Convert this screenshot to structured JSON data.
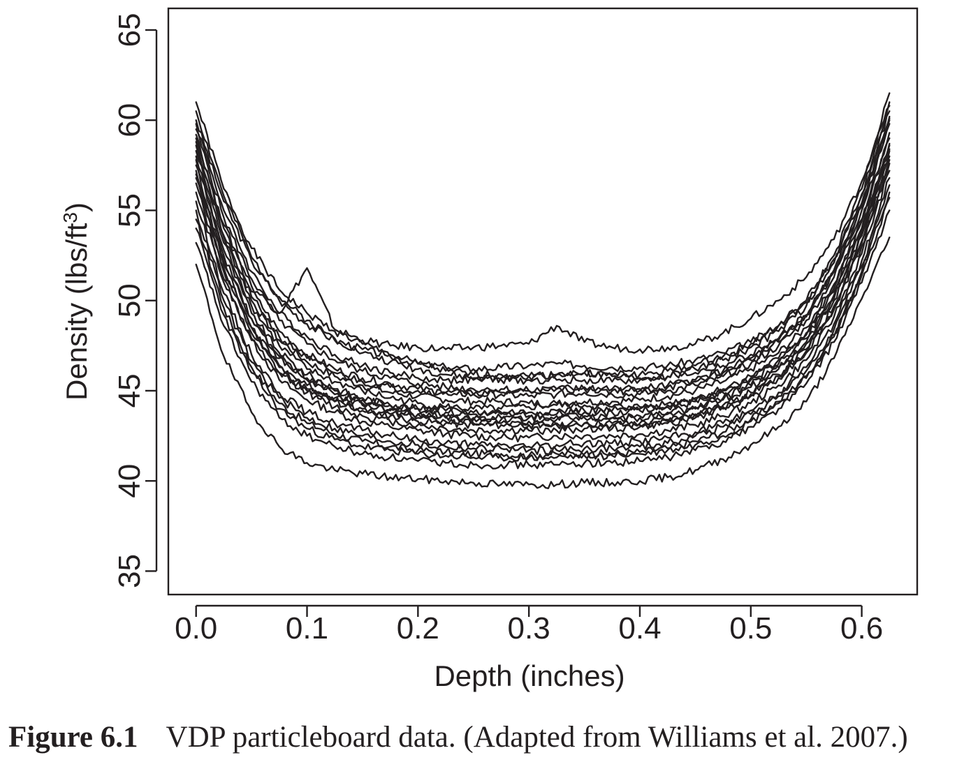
{
  "chart_data": {
    "type": "line",
    "xlabel": "Depth (inches)",
    "ylabel": "Density (lbs/ft3)",
    "ylabel_parts": {
      "main": "Density (lbs/ft",
      "sup": "3",
      "end": ")"
    },
    "xlim": [
      -0.025,
      0.65
    ],
    "ylim": [
      33.7,
      66.2
    ],
    "x_ticks": [
      "0.0",
      "0.1",
      "0.2",
      "0.3",
      "0.4",
      "0.5",
      "0.6"
    ],
    "y_ticks": [
      "35",
      "40",
      "45",
      "50",
      "55",
      "60",
      "65"
    ],
    "grid": false,
    "legend": "none",
    "line_color": "#231f20",
    "series_note": "24 profiles, each sampled at x = 0.0 to 0.625 inches",
    "x": [
      0.0,
      0.025,
      0.05,
      0.075,
      0.1,
      0.125,
      0.15,
      0.175,
      0.2,
      0.225,
      0.25,
      0.275,
      0.3,
      0.325,
      0.35,
      0.375,
      0.4,
      0.425,
      0.45,
      0.475,
      0.5,
      0.525,
      0.55,
      0.575,
      0.6,
      0.625
    ],
    "series": [
      {
        "values": [
          61.0,
          56.2,
          52.9,
          50.6,
          49.3,
          48.3,
          47.6,
          47.0,
          46.5,
          46.1,
          45.9,
          45.9,
          45.8,
          45.9,
          46.0,
          45.9,
          45.9,
          46.1,
          46.4,
          46.9,
          47.6,
          48.6,
          50.0,
          52.5,
          56.2,
          61.5
        ]
      },
      {
        "values": [
          60.5,
          55.8,
          52.4,
          50.2,
          48.9,
          47.9,
          47.1,
          46.6,
          46.2,
          45.9,
          45.7,
          45.6,
          45.6,
          45.6,
          45.6,
          45.5,
          45.6,
          45.8,
          46.2,
          46.7,
          47.4,
          48.3,
          49.7,
          52.1,
          55.8,
          61.0
        ]
      },
      {
        "values": [
          60.0,
          55.5,
          52.2,
          50.0,
          48.7,
          47.8,
          47.3,
          46.9,
          46.5,
          46.3,
          46.2,
          46.3,
          46.4,
          46.5,
          46.4,
          46.3,
          46.3,
          46.4,
          46.7,
          47.1,
          47.7,
          48.6,
          49.9,
          52.3,
          55.9,
          60.5
        ]
      },
      {
        "values": [
          59.8,
          55.0,
          51.6,
          49.3,
          48.0,
          47.0,
          46.4,
          46.0,
          45.7,
          45.6,
          45.6,
          45.7,
          45.8,
          45.9,
          46.0,
          45.8,
          45.7,
          45.8,
          46.0,
          46.4,
          47.0,
          47.9,
          49.2,
          51.6,
          55.2,
          60.0
        ]
      },
      {
        "values": [
          59.5,
          54.6,
          51.2,
          48.9,
          47.6,
          46.7,
          46.1,
          45.7,
          45.4,
          45.2,
          45.1,
          45.1,
          45.0,
          45.1,
          45.2,
          45.1,
          45.1,
          45.3,
          45.6,
          46.1,
          46.8,
          47.8,
          49.2,
          51.7,
          55.4,
          60.2
        ]
      },
      {
        "values": [
          59.2,
          54.0,
          50.5,
          48.3,
          47.0,
          46.2,
          45.7,
          45.4,
          45.1,
          44.9,
          44.8,
          44.8,
          44.7,
          44.8,
          44.9,
          44.8,
          44.8,
          45.0,
          45.3,
          45.8,
          46.5,
          47.5,
          48.9,
          51.3,
          55.0,
          59.8
        ]
      },
      {
        "values": [
          58.8,
          53.5,
          50.0,
          47.8,
          46.6,
          45.8,
          45.3,
          44.9,
          44.7,
          44.5,
          44.4,
          44.4,
          44.3,
          44.3,
          44.4,
          44.4,
          44.5,
          44.7,
          45.0,
          45.5,
          46.2,
          47.1,
          48.5,
          50.9,
          54.5,
          59.3
        ]
      },
      {
        "values": [
          58.3,
          53.2,
          49.7,
          47.5,
          46.2,
          45.5,
          45.0,
          44.6,
          44.3,
          44.1,
          44.0,
          44.0,
          44.1,
          44.2,
          44.2,
          44.1,
          44.1,
          44.3,
          44.6,
          45.1,
          45.8,
          46.8,
          48.2,
          50.7,
          54.4,
          59.0
        ]
      },
      {
        "values": [
          58.0,
          52.8,
          49.3,
          47.1,
          45.9,
          45.1,
          44.6,
          44.2,
          44.0,
          43.8,
          43.7,
          43.7,
          43.6,
          43.7,
          43.8,
          43.8,
          43.9,
          44.1,
          44.4,
          44.9,
          45.6,
          46.5,
          47.9,
          50.3,
          53.9,
          58.6
        ]
      },
      {
        "values": [
          57.8,
          52.5,
          49.0,
          46.8,
          45.6,
          44.8,
          44.3,
          44.0,
          43.7,
          43.6,
          43.5,
          43.5,
          43.5,
          43.6,
          43.6,
          43.5,
          43.5,
          43.7,
          44.0,
          44.5,
          45.2,
          46.2,
          47.6,
          50.0,
          53.6,
          58.3
        ]
      },
      {
        "values": [
          57.5,
          52.0,
          48.5,
          46.3,
          45.1,
          44.4,
          43.9,
          43.6,
          43.3,
          43.2,
          43.1,
          43.1,
          43.1,
          43.1,
          43.2,
          43.2,
          43.2,
          43.4,
          43.7,
          44.2,
          44.9,
          45.9,
          47.3,
          49.7,
          53.3,
          58.0
        ]
      },
      {
        "values": [
          57.0,
          51.6,
          48.2,
          46.0,
          44.9,
          44.1,
          43.6,
          43.3,
          43.1,
          42.9,
          42.8,
          42.8,
          42.8,
          42.8,
          42.9,
          42.9,
          43.0,
          43.2,
          43.5,
          44.0,
          44.7,
          45.7,
          47.1,
          49.5,
          53.0,
          57.6
        ]
      },
      {
        "values": [
          56.5,
          51.2,
          47.8,
          45.6,
          44.5,
          43.8,
          43.3,
          43.0,
          42.8,
          42.6,
          42.5,
          42.4,
          42.4,
          42.5,
          42.5,
          42.5,
          42.6,
          42.8,
          43.1,
          43.6,
          44.3,
          45.3,
          46.7,
          49.1,
          52.6,
          57.2
        ]
      },
      {
        "values": [
          56.0,
          51.0,
          47.9,
          46.0,
          45.0,
          44.4,
          44.0,
          43.7,
          43.5,
          43.3,
          43.2,
          43.2,
          43.1,
          43.2,
          43.2,
          43.1,
          43.1,
          43.3,
          43.6,
          44.1,
          44.8,
          45.8,
          47.2,
          49.6,
          53.2,
          57.8
        ]
      },
      {
        "values": [
          55.5,
          50.4,
          47.0,
          44.9,
          43.8,
          43.2,
          42.8,
          42.5,
          42.3,
          42.1,
          42.0,
          42.0,
          41.9,
          42.0,
          42.1,
          42.1,
          42.2,
          42.4,
          42.7,
          43.2,
          43.9,
          44.9,
          46.3,
          48.7,
          52.2,
          56.8
        ]
      },
      {
        "values": [
          55.0,
          50.0,
          46.6,
          44.6,
          43.5,
          42.9,
          42.5,
          42.2,
          42.0,
          41.9,
          41.8,
          41.8,
          41.7,
          41.7,
          41.8,
          41.8,
          41.9,
          42.1,
          42.5,
          43.0,
          43.7,
          44.7,
          46.1,
          48.4,
          51.9,
          56.4
        ]
      },
      {
        "values": [
          54.5,
          49.6,
          46.3,
          44.3,
          43.2,
          42.6,
          42.2,
          41.9,
          41.7,
          41.6,
          41.5,
          41.5,
          41.4,
          41.5,
          41.5,
          41.5,
          41.6,
          41.8,
          42.2,
          42.7,
          43.4,
          44.4,
          45.8,
          48.1,
          51.6,
          56.0
        ]
      },
      {
        "values": [
          53.2,
          48.6,
          45.5,
          43.5,
          42.5,
          41.9,
          41.5,
          41.3,
          41.1,
          41.0,
          40.9,
          40.9,
          40.9,
          40.9,
          41.0,
          41.0,
          41.1,
          41.3,
          41.7,
          42.2,
          43.0,
          44.0,
          45.4,
          47.7,
          51.0,
          55.0
        ]
      },
      {
        "values": [
          52.0,
          46.9,
          43.8,
          41.9,
          41.0,
          40.6,
          40.4,
          40.2,
          40.1,
          40.0,
          39.9,
          39.8,
          39.8,
          39.8,
          39.9,
          39.9,
          40.0,
          40.2,
          40.6,
          41.2,
          42.0,
          43.0,
          44.4,
          46.8,
          50.1,
          53.5
        ]
      },
      {
        "values": [
          59.0,
          54.2,
          50.8,
          49.3,
          51.8,
          48.4,
          47.8,
          47.5,
          47.4,
          47.3,
          47.4,
          47.5,
          47.6,
          48.6,
          47.7,
          47.4,
          47.3,
          47.4,
          47.6,
          48.2,
          49.0,
          50.0,
          51.3,
          53.4,
          56.6,
          60.8
        ]
      },
      {
        "values": [
          58.6,
          53.6,
          50.2,
          48.0,
          46.8,
          46.0,
          45.5,
          45.2,
          45.0,
          44.9,
          44.8,
          44.9,
          45.0,
          45.1,
          45.1,
          45.0,
          45.0,
          45.2,
          45.5,
          46.0,
          46.7,
          47.7,
          49.1,
          51.6,
          55.3,
          60.1
        ]
      },
      {
        "values": [
          57.2,
          52.3,
          49.0,
          46.9,
          45.7,
          45.0,
          44.5,
          44.2,
          44.0,
          43.9,
          43.8,
          43.8,
          43.8,
          43.9,
          43.9,
          43.9,
          44.0,
          44.2,
          44.5,
          45.0,
          45.7,
          46.7,
          48.1,
          50.5,
          54.0,
          58.7
        ]
      },
      {
        "values": [
          54.0,
          49.2,
          46.0,
          44.0,
          42.9,
          42.3,
          41.9,
          41.7,
          41.5,
          41.4,
          41.3,
          41.3,
          41.3,
          41.3,
          41.4,
          41.4,
          41.5,
          41.7,
          42.0,
          42.5,
          43.3,
          44.3,
          45.7,
          48.0,
          51.4,
          55.7
        ]
      },
      {
        "values": [
          56.8,
          51.8,
          48.5,
          46.4,
          45.3,
          44.6,
          44.2,
          43.9,
          43.7,
          43.5,
          43.4,
          43.4,
          43.3,
          43.4,
          43.5,
          43.5,
          43.6,
          43.8,
          44.1,
          44.6,
          45.3,
          46.3,
          47.7,
          50.1,
          53.7,
          58.4
        ]
      }
    ]
  },
  "caption": {
    "label": "Figure  6.1",
    "text": "VDP particleboard data. (Adapted from Williams et al. 2007.)"
  }
}
